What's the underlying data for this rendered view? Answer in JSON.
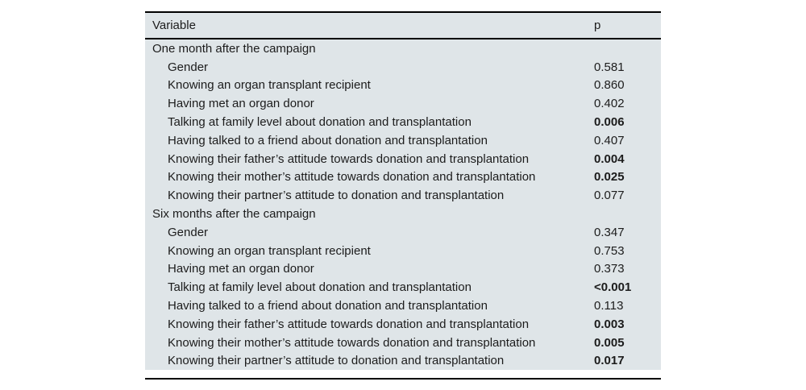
{
  "colors": {
    "table_background": "#dfe5e8",
    "rule": "#000000",
    "text": "#1c1c1c",
    "page_background": "#ffffff"
  },
  "table": {
    "columns": {
      "variable": "Variable",
      "p": "p"
    },
    "sections": [
      {
        "title": "One month after the campaign",
        "rows": [
          {
            "label": "Gender",
            "p": "0.581",
            "bold": false
          },
          {
            "label": "Knowing an organ transplant recipient",
            "p": "0.860",
            "bold": false
          },
          {
            "label": "Having met an organ donor",
            "p": "0.402",
            "bold": false
          },
          {
            "label": "Talking at family level about donation and transplantation",
            "p": "0.006",
            "bold": true
          },
          {
            "label": "Having talked to a friend about donation and transplantation",
            "p": "0.407",
            "bold": false
          },
          {
            "label": "Knowing their father’s attitude towards donation and transplantation",
            "p": "0.004",
            "bold": true
          },
          {
            "label": "Knowing their mother’s attitude towards donation and transplantation",
            "p": "0.025",
            "bold": true
          },
          {
            "label": "Knowing their partner’s attitude to donation and transplantation",
            "p": "0.077",
            "bold": false
          }
        ]
      },
      {
        "title": "Six months after the campaign",
        "rows": [
          {
            "label": "Gender",
            "p": "0.347",
            "bold": false
          },
          {
            "label": "Knowing an organ transplant recipient",
            "p": "0.753",
            "bold": false
          },
          {
            "label": "Having met an organ donor",
            "p": "0.373",
            "bold": false
          },
          {
            "label": "Talking at family level about donation and transplantation",
            "p": "<0.001",
            "bold": true
          },
          {
            "label": "Having talked to a friend about donation and transplantation",
            "p": "0.113",
            "bold": false
          },
          {
            "label": "Knowing their father’s attitude towards donation and transplantation",
            "p": "0.003",
            "bold": true
          },
          {
            "label": "Knowing their mother’s attitude towards donation and transplantation",
            "p": "0.005",
            "bold": true
          },
          {
            "label": "Knowing their partner’s attitude to donation and transplantation",
            "p": "0.017",
            "bold": true
          }
        ]
      }
    ]
  }
}
